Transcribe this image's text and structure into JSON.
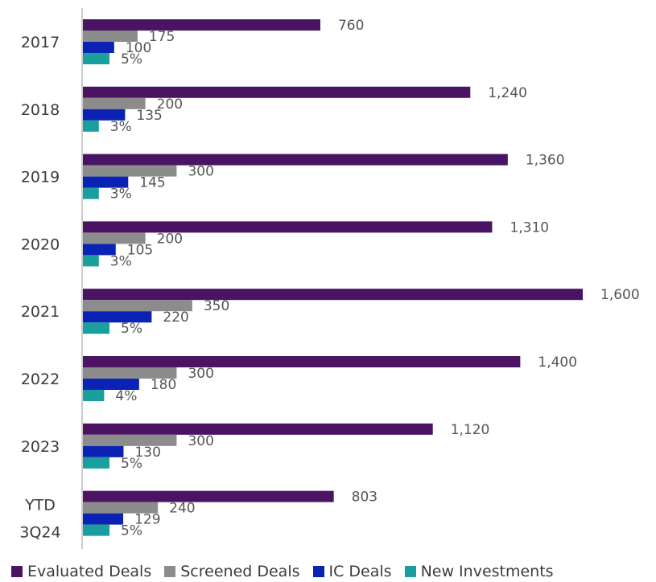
{
  "chart_data": {
    "type": "bar",
    "orientation": "horizontal",
    "categories": [
      [
        "2017"
      ],
      [
        "2018"
      ],
      [
        "2019"
      ],
      [
        "2020"
      ],
      [
        "2021"
      ],
      [
        "2022"
      ],
      [
        "2023"
      ],
      [
        "YTD",
        "3Q24"
      ]
    ],
    "series": [
      {
        "name": "Evaluated Deals",
        "color": "#4b1462",
        "values": [
          760,
          1240,
          1360,
          1310,
          1600,
          1400,
          1120,
          803
        ],
        "labels": [
          "760",
          "1,240",
          "1,360",
          "1,310",
          "1,600",
          "1,400",
          "1,120",
          "803"
        ]
      },
      {
        "name": "Screened Deals",
        "color": "#8c8c8c",
        "values": [
          175,
          200,
          300,
          200,
          350,
          300,
          300,
          240
        ],
        "labels": [
          "175",
          "200",
          "300",
          "200",
          "350",
          "300",
          "300",
          "240"
        ]
      },
      {
        "name": "IC Deals",
        "color": "#0a23b4",
        "values": [
          100,
          135,
          145,
          105,
          220,
          180,
          130,
          129
        ],
        "labels": [
          "100",
          "135",
          "145",
          "105",
          "220",
          "180",
          "130",
          "129"
        ]
      },
      {
        "name": "New Investments",
        "color": "#1a9e9e",
        "values": [
          5,
          3,
          3,
          3,
          5,
          4,
          5,
          5
        ],
        "labels": [
          "5%",
          "3%",
          "3%",
          "3%",
          "5%",
          "4%",
          "5%",
          "5%"
        ]
      }
    ],
    "legend_position": "bottom-left",
    "grid": false
  }
}
